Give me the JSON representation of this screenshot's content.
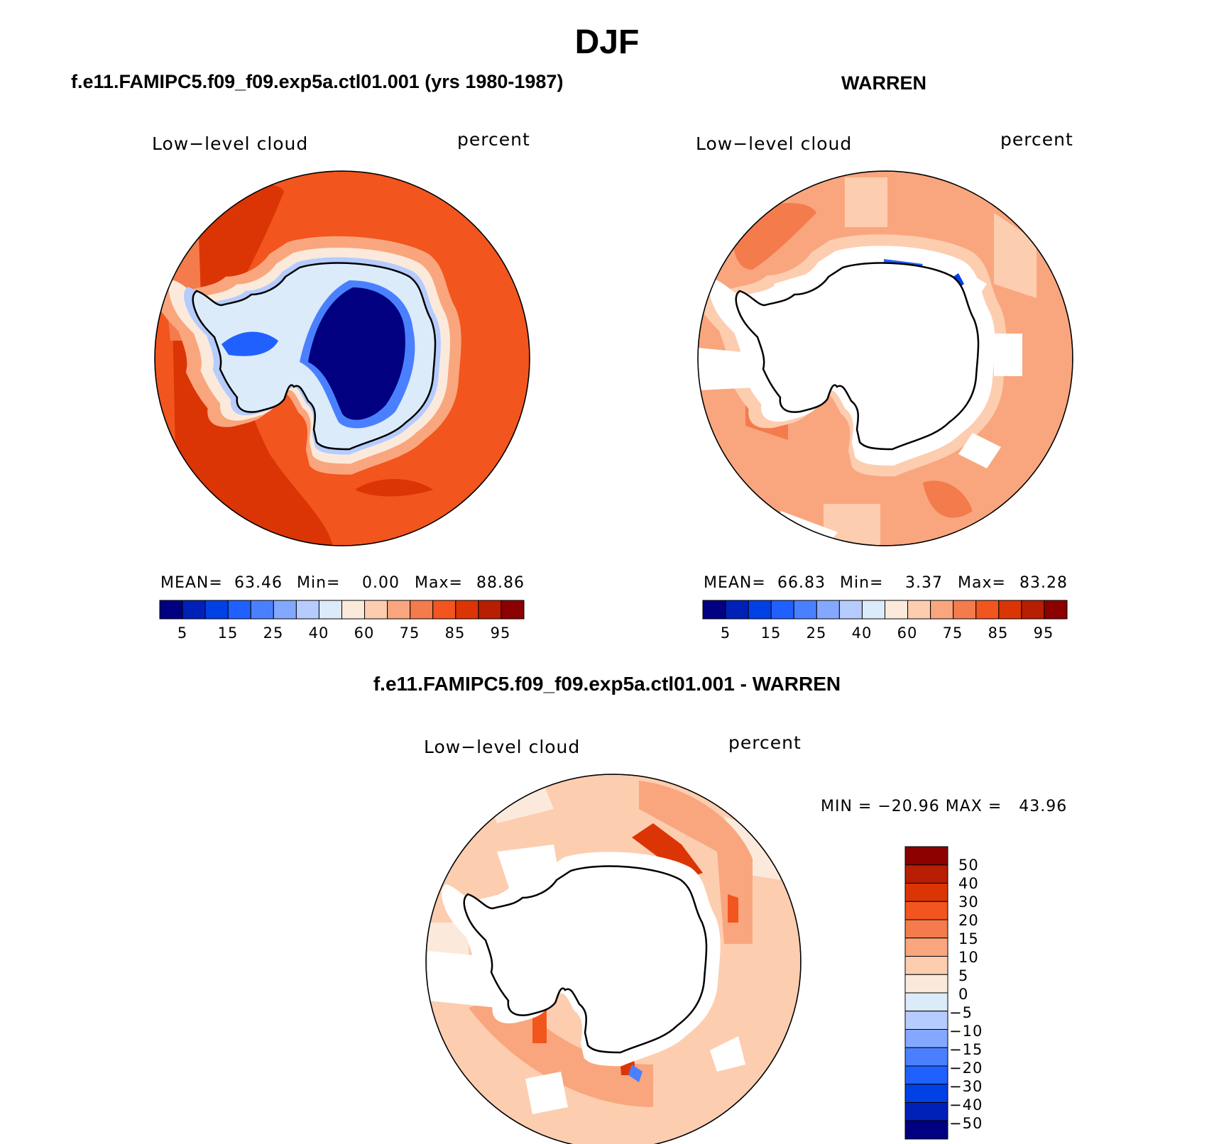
{
  "title": "DJF",
  "colors": {
    "seq": [
      "#000080",
      "#0021b8",
      "#0041e6",
      "#2060ff",
      "#4a80ff",
      "#84a8ff",
      "#b6ccff",
      "#dcebfa",
      "#fbeadb",
      "#fdcdb0",
      "#f9a67e",
      "#f47b4c",
      "#f2551e",
      "#dc3505",
      "#b81e02",
      "#8b0000"
    ],
    "diff": [
      "#8b0000",
      "#b81e02",
      "#dc3505",
      "#f2551e",
      "#f47b4c",
      "#f9a67e",
      "#fdcdb0",
      "#fbeadb",
      "#dcebfa",
      "#b6ccff",
      "#84a8ff",
      "#4a80ff",
      "#2060ff",
      "#0041e6",
      "#0021b8",
      "#000080"
    ]
  },
  "panels": [
    {
      "title": "f.e11.FAMIPC5.f09_f09.exp5a.ctl01.001 (yrs 1980-1987)",
      "variable": "Low−level cloud",
      "units": "percent",
      "stats": {
        "mean_label": "MEAN=",
        "mean": "63.46",
        "min_label": "Min=",
        "min": "0.00",
        "max_label": "Max=",
        "max": "88.86"
      },
      "colorbar_labels": [
        "5",
        "15",
        "25",
        "40",
        "60",
        "75",
        "85",
        "95"
      ]
    },
    {
      "title": "WARREN",
      "variable": "Low−level cloud",
      "units": "percent",
      "stats": {
        "mean_label": "MEAN=",
        "mean": "66.83",
        "min_label": "Min=",
        "min": "3.37",
        "max_label": "Max=",
        "max": "83.28"
      },
      "colorbar_labels": [
        "5",
        "15",
        "25",
        "40",
        "60",
        "75",
        "85",
        "95"
      ]
    },
    {
      "title": "f.e11.FAMIPC5.f09_f09.exp5a.ctl01.001 - WARREN",
      "variable": "Low−level cloud",
      "units": "percent",
      "minmax": "MIN = −20.96 MAX =   43.96",
      "colorbar_labels": [
        "50",
        "40",
        "30",
        "20",
        "15",
        "10",
        "5",
        "0",
        "−5",
        "−10",
        "−15",
        "−20",
        "−30",
        "−40",
        "−50"
      ]
    }
  ]
}
